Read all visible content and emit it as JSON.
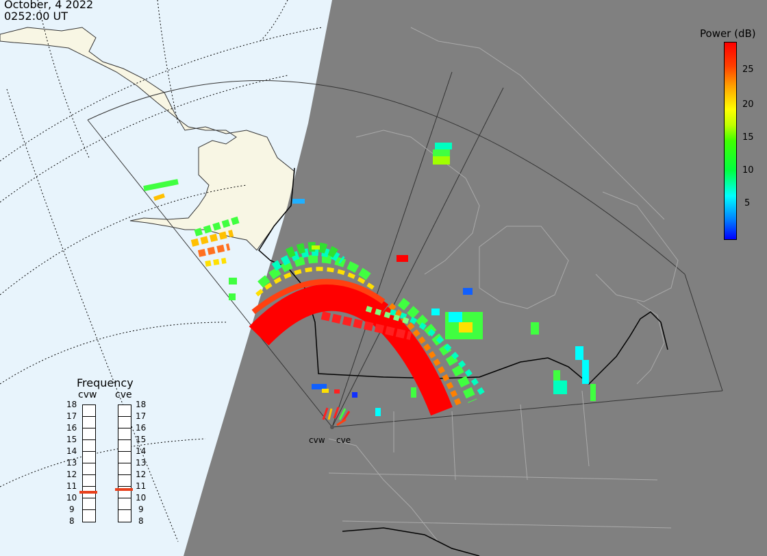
{
  "header": {
    "date": "October, 4 2022",
    "time": "0252:00 UT"
  },
  "colorbar": {
    "title": "Power (dB)",
    "ticks": [
      "25",
      "20",
      "15",
      "10",
      "5"
    ]
  },
  "frequency_panel": {
    "title": "Frequency",
    "radars": [
      "cvw",
      "cve"
    ],
    "scale": [
      "18",
      "17",
      "16",
      "15",
      "14",
      "13",
      "12",
      "11",
      "10",
      "9",
      "8"
    ],
    "cvw_mhz": 10.5,
    "cve_mhz": 10.7
  },
  "radar_sites": {
    "west": "cvw",
    "east": "cve"
  },
  "colors": {
    "ocean": "#e8f4fc",
    "land": "#f8f6e4",
    "night": "#808080",
    "freq_marker": "#e8401c"
  }
}
